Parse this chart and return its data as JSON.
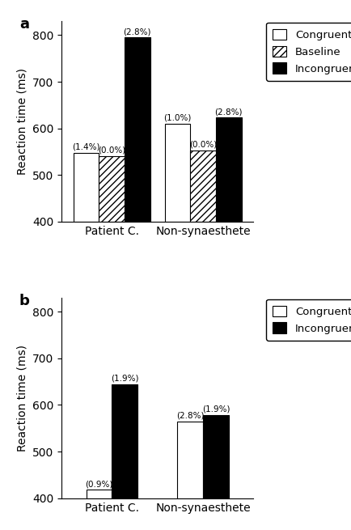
{
  "panel_a": {
    "title": "a",
    "groups": [
      "Patient C.",
      "Non-synaesthete"
    ],
    "bars": {
      "Congruent": [
        547,
        610
      ],
      "Baseline": [
        540,
        553
      ],
      "Incongruent": [
        795,
        623
      ]
    },
    "labels": {
      "Congruent": [
        "(1.4%)",
        "(1.0%)"
      ],
      "Baseline": [
        "(0.0%)",
        "(0.0%)"
      ],
      "Incongruent": [
        "(2.8%)",
        "(2.8%)"
      ]
    },
    "ylim": [
      400,
      830
    ],
    "yticks": [
      400,
      500,
      600,
      700,
      800
    ],
    "ylabel": "Reaction time (ms)",
    "legend": [
      "Congruent",
      "Baseline",
      "Incongruent"
    ]
  },
  "panel_b": {
    "title": "b",
    "groups": [
      "Patient C.",
      "Non-synaesthete"
    ],
    "bars": {
      "Congruent": [
        418,
        565
      ],
      "Incongruent": [
        645,
        578
      ]
    },
    "labels": {
      "Congruent": [
        "(0.9%)",
        "(2.8%)"
      ],
      "Incongruent": [
        "(1.9%)",
        "(1.9%)"
      ]
    },
    "ylim": [
      400,
      830
    ],
    "yticks": [
      400,
      500,
      600,
      700,
      800
    ],
    "ylabel": "Reaction time (ms)",
    "legend": [
      "Congruent",
      "Incongruent"
    ]
  },
  "bar_width": 0.28,
  "annotation_fontsize": 7.5,
  "axis_label_fontsize": 10,
  "tick_fontsize": 10,
  "legend_fontsize": 9.5,
  "title_fontsize": 13,
  "hatch_pattern": "////"
}
